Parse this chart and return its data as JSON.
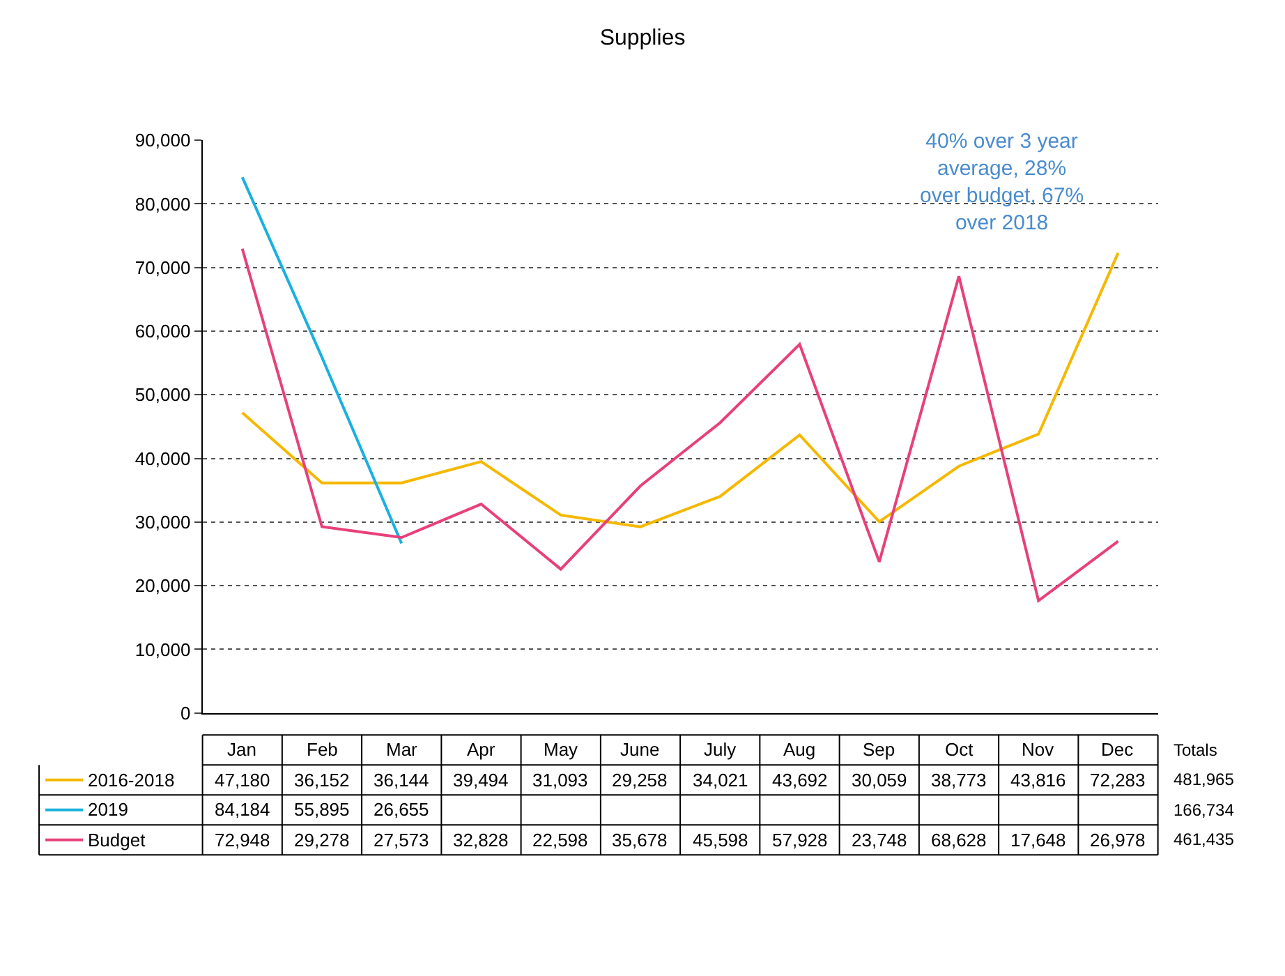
{
  "chart_data": {
    "type": "line",
    "title": "Supplies",
    "categories": [
      "Jan",
      "Feb",
      "Mar",
      "Apr",
      "May",
      "June",
      "July",
      "Aug",
      "Sep",
      "Oct",
      "Nov",
      "Dec"
    ],
    "series": [
      {
        "name": "2016-2018",
        "color": "#f5b800",
        "values": [
          47180,
          36152,
          36144,
          39494,
          31093,
          29258,
          34021,
          43692,
          30059,
          38773,
          43816,
          72283
        ],
        "value_labels": [
          "47,180",
          "36,152",
          "36,144",
          "39,494",
          "31,093",
          "29,258",
          "34,021",
          "43,692",
          "30,059",
          "38,773",
          "43,816",
          "72,283"
        ]
      },
      {
        "name": "2019",
        "color": "#1ab0e0",
        "values": [
          84184,
          55895,
          26655,
          null,
          null,
          null,
          null,
          null,
          null,
          null,
          null,
          null
        ],
        "value_labels": [
          "84,184",
          "55,895",
          "26,655",
          null,
          null,
          null,
          null,
          null,
          null,
          null,
          null,
          null
        ]
      },
      {
        "name": "Budget",
        "color": "#e8407a",
        "values": [
          72948,
          29278,
          27573,
          32828,
          22598,
          35678,
          45598,
          57928,
          23748,
          68628,
          17648,
          26978
        ],
        "value_labels": [
          "72,948",
          "29,278",
          "27,573",
          "32,828",
          "22,598",
          "35,678",
          "45,598",
          "57,928",
          "23,748",
          "68,628",
          "17,648",
          "26,978"
        ]
      }
    ],
    "ylim": [
      0,
      90000
    ],
    "yticks": [
      {
        "value": 0,
        "label": "0"
      },
      {
        "value": 10000,
        "label": "10,000"
      },
      {
        "value": 20000,
        "label": "20,000"
      },
      {
        "value": 30000,
        "label": "30,000"
      },
      {
        "value": 40000,
        "label": "40,000"
      },
      {
        "value": 50000,
        "label": "50,000"
      },
      {
        "value": 60000,
        "label": "60,000"
      },
      {
        "value": 70000,
        "label": "70,000"
      },
      {
        "value": 80000,
        "label": "80,000"
      },
      {
        "value": 90000,
        "label": "90,000"
      }
    ],
    "grid": "y",
    "legend": "bottom left",
    "marker": "none",
    "line_style": "solid",
    "tick_labels": "y",
    "annotations": [
      "40% over 3 year average, 28% over budget, 67% over 2018",
      "Totals",
      "481,965",
      "166,734",
      "461,435"
    ]
  }
}
